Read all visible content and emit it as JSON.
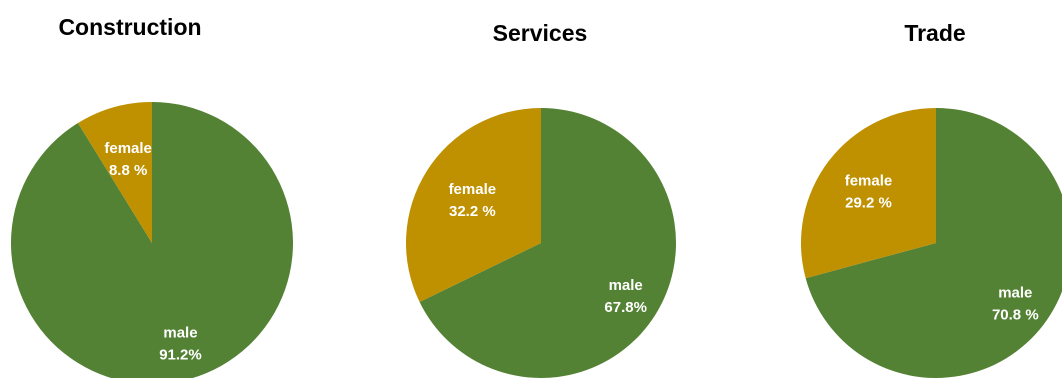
{
  "chart_data": [
    {
      "type": "pie",
      "title": "Construction",
      "slices": [
        {
          "name": "male",
          "value": 91.2,
          "label_line1": "male",
          "label_line2": "91.2%",
          "color": "#548235"
        },
        {
          "name": "female",
          "value": 8.8,
          "label_line1": "female",
          "label_line2": "8.8 %",
          "color": "#BF9000"
        }
      ]
    },
    {
      "type": "pie",
      "title": "Services",
      "slices": [
        {
          "name": "male",
          "value": 67.8,
          "label_line1": "male",
          "label_line2": "67.8%",
          "color": "#548235"
        },
        {
          "name": "female",
          "value": 32.2,
          "label_line1": "female",
          "label_line2": "32.2 %",
          "color": "#BF9000"
        }
      ]
    },
    {
      "type": "pie",
      "title": "Trade",
      "slices": [
        {
          "name": "male",
          "value": 70.8,
          "label_line1": "male",
          "label_line2": "70.8 %",
          "color": "#548235"
        },
        {
          "name": "female",
          "value": 29.2,
          "label_line1": "female",
          "label_line2": "29.2 %",
          "color": "#BF9000"
        }
      ]
    }
  ]
}
